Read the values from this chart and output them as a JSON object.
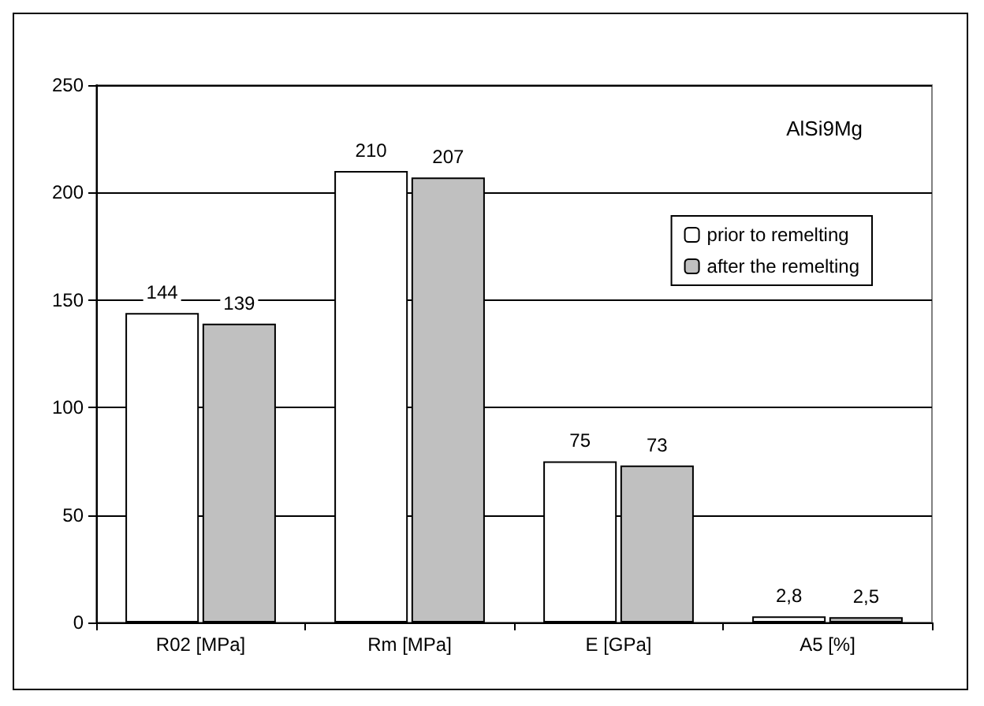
{
  "chart_data": {
    "type": "bar",
    "categories": [
      "R02 [MPa]",
      "Rm [MPa]",
      "E [GPa]",
      "A5 [%]"
    ],
    "series": [
      {
        "name": "prior to remelting",
        "color": "#ffffff",
        "values": [
          144,
          210,
          75,
          2.8
        ],
        "value_labels": [
          "144",
          "210",
          "75",
          "2,8"
        ]
      },
      {
        "name": "after the remelting",
        "color": "#c0c0c0",
        "values": [
          139,
          207,
          73,
          2.5
        ],
        "value_labels": [
          "139",
          "207",
          "73",
          "2,5"
        ]
      }
    ],
    "ylim": [
      0,
      250
    ],
    "yticks": [
      0,
      50,
      100,
      150,
      200,
      250
    ],
    "grid": "y",
    "legend": "top right",
    "annotations": [
      "AlSi9Mg"
    ]
  }
}
